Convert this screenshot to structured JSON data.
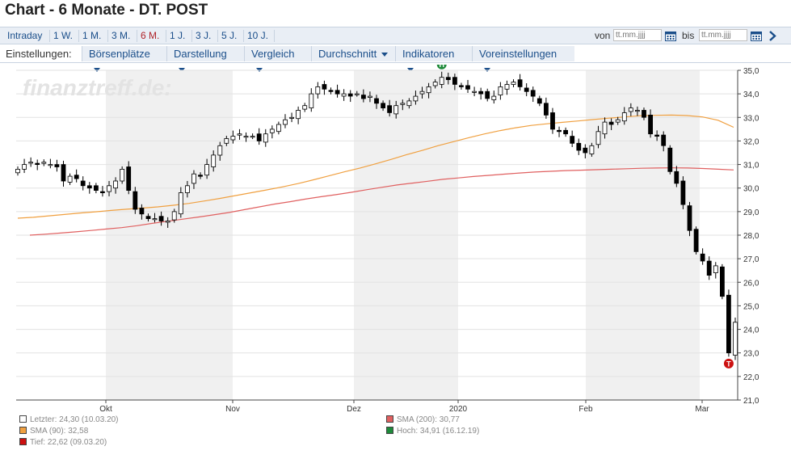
{
  "header": {
    "title": "Chart - 6 Monate - DT. POST"
  },
  "ranges": [
    {
      "label": "Intraday",
      "active": false
    },
    {
      "label": "1 W.",
      "active": false
    },
    {
      "label": "1 M.",
      "active": false
    },
    {
      "label": "3 M.",
      "active": false
    },
    {
      "label": "6 M.",
      "active": true
    },
    {
      "label": "1 J.",
      "active": false
    },
    {
      "label": "3 J.",
      "active": false
    },
    {
      "label": "5 J.",
      "active": false
    },
    {
      "label": "10 J.",
      "active": false
    }
  ],
  "date_filter": {
    "from_label": "von",
    "to_label": "bis",
    "placeholder": "tt.mm.jjjj"
  },
  "settings": {
    "label": "Einstellungen:",
    "menus": [
      "Börsenplätze",
      "Darstellung",
      "Vergleich",
      "Durchschnitt",
      "Indikatoren",
      "Voreinstellungen"
    ]
  },
  "watermark": "finanztreff.de:",
  "colors": {
    "accent": "#1a4e8a",
    "active_range": "#b0242a",
    "sma90": "#f0a040",
    "sma200": "#e06060",
    "high_marker": "#1e8a3a",
    "low_marker": "#cc1111"
  },
  "chart_data": {
    "type": "candlestick",
    "yticks": [
      "35,0",
      "34,0",
      "33,0",
      "32,0",
      "31,0",
      "30,0",
      "29,0",
      "28,0",
      "27,0",
      "26,0",
      "25,0",
      "24,0",
      "23,0",
      "22,0",
      "21,0"
    ],
    "xticks": [
      "Okt",
      "Nov",
      "Dez",
      "2020",
      "Feb",
      "Mar"
    ],
    "ylim": [
      21,
      35
    ],
    "markers": {
      "high": "H",
      "low": "T"
    },
    "close": [
      30.8,
      31.0,
      31.1,
      31.0,
      31.1,
      31.0,
      30.9,
      30.3,
      30.5,
      30.4,
      30.1,
      30.0,
      29.9,
      29.8,
      30.1,
      30.3,
      30.8,
      29.9,
      29.1,
      28.9,
      28.7,
      28.7,
      28.6,
      28.6,
      29.0,
      29.8,
      30.1,
      30.6,
      30.5,
      31.0,
      31.4,
      31.8,
      32.1,
      32.2,
      32.3,
      32.2,
      32.2,
      32.0,
      32.3,
      32.5,
      32.7,
      32.9,
      33.0,
      33.3,
      33.5,
      34.0,
      34.3,
      34.2,
      34.1,
      34.0,
      34.0,
      33.9,
      34.0,
      33.8,
      33.9,
      33.6,
      33.4,
      33.2,
      33.5,
      33.6,
      33.7,
      33.9,
      34.1,
      34.3,
      34.5,
      34.7,
      34.6,
      34.4,
      34.3,
      34.2,
      34.1,
      34.0,
      33.8,
      33.9,
      34.3,
      34.4,
      34.5,
      34.3,
      34.1,
      33.9,
      33.6,
      33.1,
      32.5,
      32.4,
      32.3,
      31.9,
      31.6,
      31.5,
      31.8,
      32.4,
      32.8,
      32.7,
      32.9,
      33.2,
      33.4,
      33.3,
      33.0,
      32.3,
      32.2,
      31.8,
      30.7,
      30.2,
      29.3,
      28.2,
      27.3,
      26.9,
      26.3,
      26.7,
      25.4,
      23.0,
      24.3
    ],
    "sma90": [
      28.72,
      28.76,
      28.82,
      28.88,
      28.94,
      28.99,
      29.05,
      29.1,
      29.15,
      29.2,
      29.27,
      29.35,
      29.45,
      29.56,
      29.68,
      29.8,
      29.92,
      30.05,
      30.19,
      30.35,
      30.52,
      30.69,
      30.85,
      31.03,
      31.22,
      31.42,
      31.6,
      31.8,
      31.97,
      32.14,
      32.3,
      32.44,
      32.56,
      32.66,
      32.73,
      32.79,
      32.85,
      32.91,
      32.97,
      33.02,
      33.07,
      33.09,
      33.1,
      33.08,
      33.02,
      32.88,
      32.58
    ],
    "sma200": [
      28.0,
      28.04,
      28.09,
      28.14,
      28.2,
      28.26,
      28.32,
      28.4,
      28.5,
      28.59,
      28.68,
      28.77,
      28.86,
      28.96,
      29.08,
      29.2,
      29.32,
      29.42,
      29.53,
      29.63,
      29.72,
      29.82,
      29.93,
      30.03,
      30.13,
      30.21,
      30.29,
      30.37,
      30.43,
      30.49,
      30.54,
      30.59,
      30.64,
      30.68,
      30.71,
      30.74,
      30.76,
      30.78,
      30.8,
      30.82,
      30.84,
      30.85,
      30.86,
      30.85,
      30.83,
      30.8,
      30.77
    ]
  },
  "legend": {
    "letzter": "Letzter: 24,30 (10.03.20)",
    "sma200": "SMA (200): 30,77",
    "sma90": "SMA (90): 32,58",
    "hoch": "Hoch: 34,91 (16.12.19)",
    "tief": "Tief: 22,62 (09.03.20)"
  }
}
